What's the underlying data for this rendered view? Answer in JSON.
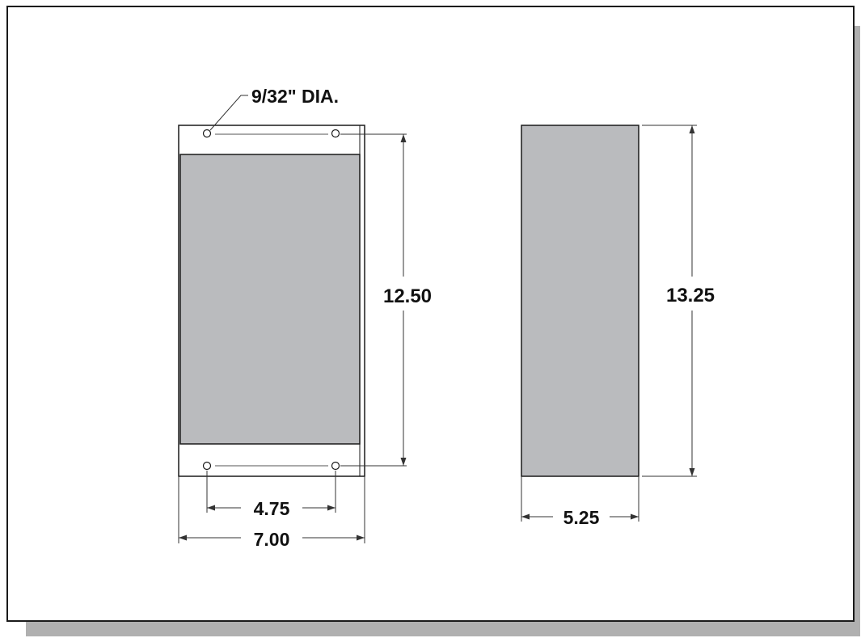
{
  "colors": {
    "panel_fill": "#babbbe",
    "outline": "#1a1a1a",
    "dimension_line": "#333333",
    "shadow": "#b0b0b0",
    "background": "#ffffff"
  },
  "front_view": {
    "hole_callout": "9/32\" DIA.",
    "height_dimension": "12.50",
    "hole_spacing_dimension": "4.75",
    "width_dimension": "7.00"
  },
  "side_view": {
    "height_dimension": "13.25",
    "depth_dimension": "5.25"
  }
}
